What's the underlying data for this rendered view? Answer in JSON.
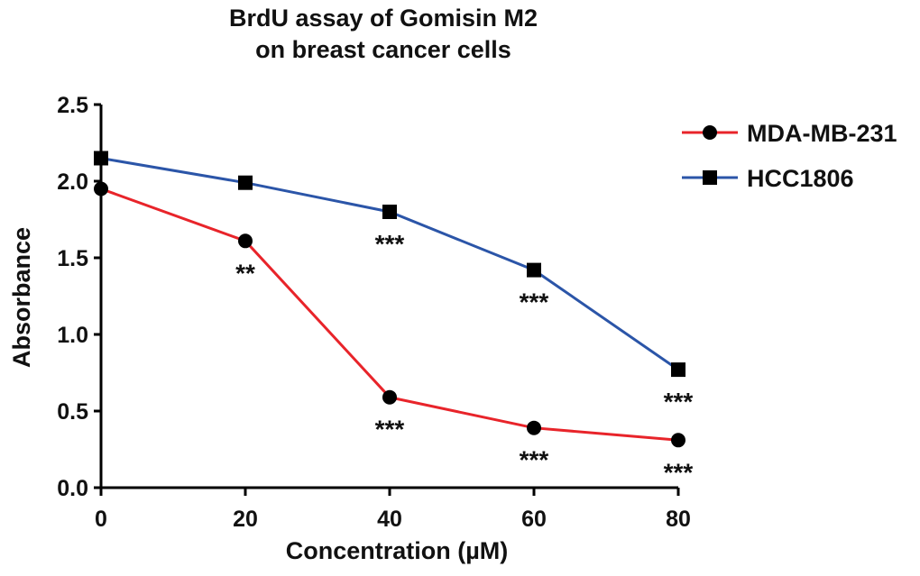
{
  "chart_data": {
    "type": "line",
    "title": "BrdU assay of Gomisin M2",
    "subtitle": "on breast cancer cells",
    "xlabel": "Concentration (µM)",
    "ylabel": "Absorbance",
    "x": [
      0,
      20,
      40,
      60,
      80
    ],
    "xlim": [
      0,
      80
    ],
    "ylim": [
      0,
      2.5
    ],
    "xticks": [
      "0",
      "20",
      "40",
      "60",
      "80"
    ],
    "yticks": [
      "0.0",
      "0.5",
      "1.0",
      "1.5",
      "2.0",
      "2.5"
    ],
    "grid": false,
    "legend_position": "top-right",
    "series": [
      {
        "name": "MDA-MB-231",
        "color": "#e8242a",
        "marker": "circle",
        "values": [
          1.95,
          1.61,
          0.59,
          0.39,
          0.31
        ],
        "annotations": [
          "",
          "**",
          "***",
          "***",
          "***"
        ]
      },
      {
        "name": "HCC1806",
        "color": "#2b55a8",
        "marker": "square",
        "values": [
          2.15,
          1.99,
          1.8,
          1.42,
          0.77
        ],
        "annotations": [
          "",
          "",
          "***",
          "***",
          "***"
        ]
      }
    ]
  }
}
